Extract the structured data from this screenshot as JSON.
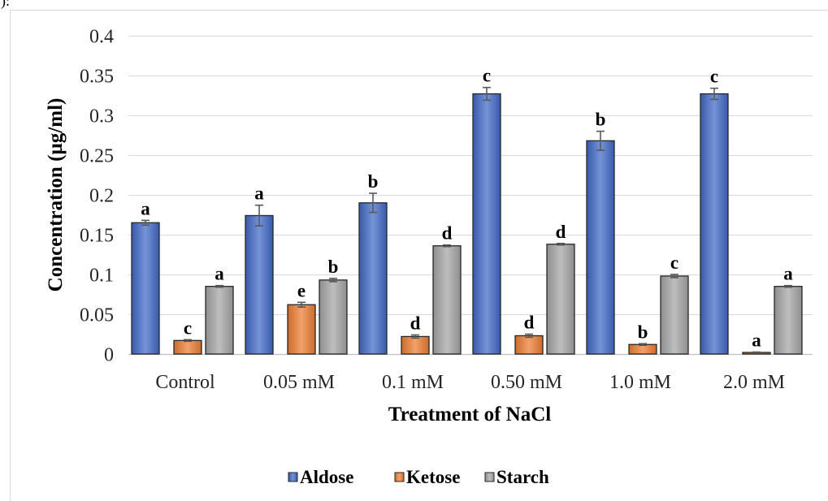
{
  "fragment_text": "):",
  "chart_data": {
    "type": "bar",
    "xlabel": "Treatment of NaCl",
    "ylabel": "Concentration (µg/ml)",
    "ylim": [
      0,
      0.4
    ],
    "y_ticks": [
      "0",
      "0.05",
      "0.1",
      "0.15",
      "0.2",
      "0.25",
      "0.3",
      "0.35",
      "0.4"
    ],
    "grid": true,
    "legend_position": "bottom",
    "error_bars": true,
    "categories": [
      "Control",
      "0.05 mM",
      "0.1 mM",
      "0.50 mM",
      "1.0 mM",
      "2.0 mM"
    ],
    "series": [
      {
        "name": "Aldose",
        "color": "#4169c8",
        "values": [
          0.165,
          0.174,
          0.19,
          0.327,
          0.268,
          0.327
        ],
        "errors": [
          0.003,
          0.013,
          0.012,
          0.008,
          0.012,
          0.007
        ],
        "letters": [
          "a",
          "a",
          "b",
          "c",
          "b",
          "c"
        ]
      },
      {
        "name": "Ketose",
        "color": "#ed7d31",
        "values": [
          0.017,
          0.062,
          0.022,
          0.023,
          0.012,
          0.002
        ],
        "errors": [
          0.001,
          0.003,
          0.002,
          0.002,
          0.001,
          0.0005
        ],
        "letters": [
          "c",
          "e",
          "d",
          "d",
          "b",
          "a"
        ]
      },
      {
        "name": "Starch",
        "color": "#a5a5a5",
        "values": [
          0.085,
          0.093,
          0.136,
          0.138,
          0.098,
          0.085
        ],
        "errors": [
          0.001,
          0.002,
          0.001,
          0.001,
          0.002,
          0.001
        ],
        "letters": [
          "a",
          "b",
          "d",
          "d",
          "c",
          "a"
        ]
      }
    ]
  }
}
